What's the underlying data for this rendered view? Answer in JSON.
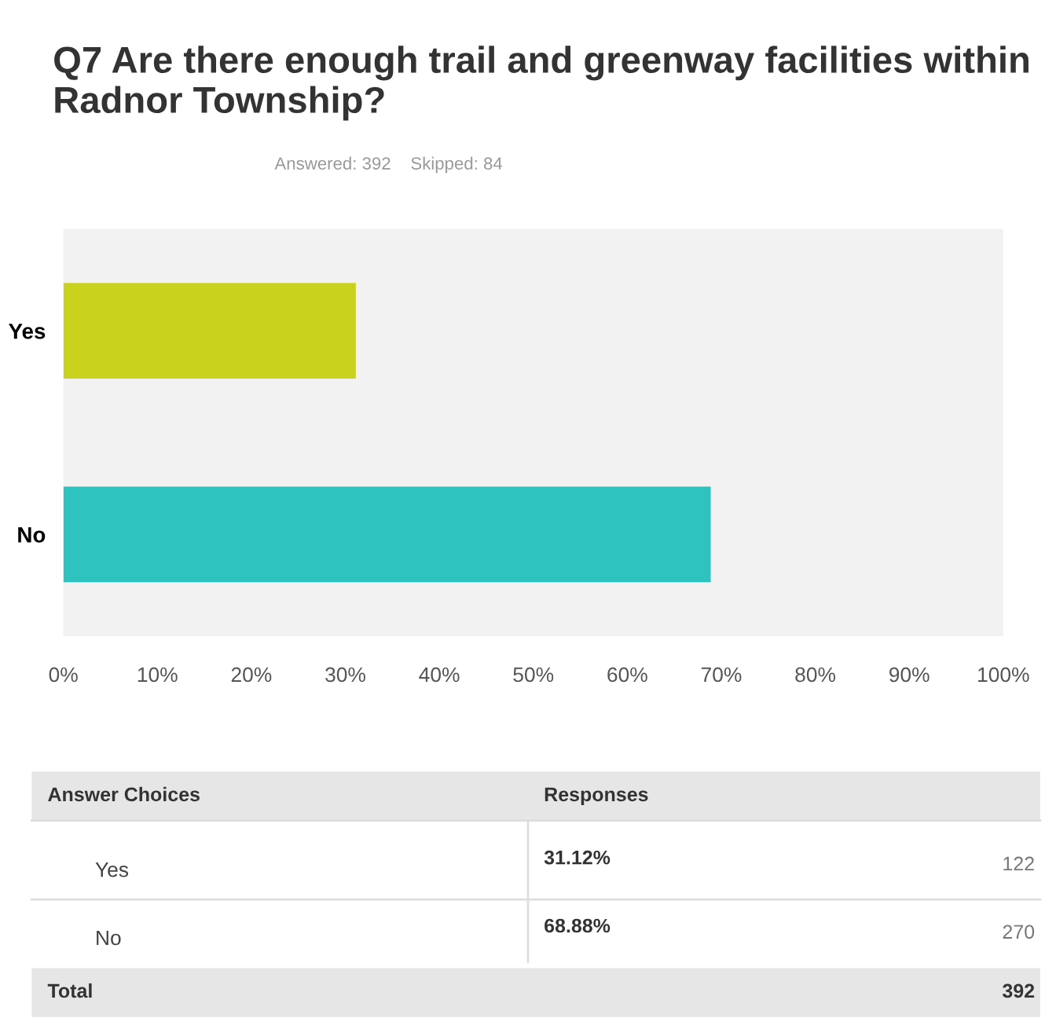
{
  "chart_data": {
    "type": "bar",
    "orientation": "horizontal",
    "title": "Q7 Are there enough trail and greenway facilities within Radnor Township?",
    "subtitle": "Answered: 392    Skipped: 84",
    "categories": [
      "Yes",
      "No"
    ],
    "values": [
      31.12,
      68.88
    ],
    "colors": [
      "#c9d21c",
      "#2fc3bf"
    ],
    "xlim": [
      0,
      100
    ],
    "xticks": [
      {
        "value": 0,
        "label": "0%"
      },
      {
        "value": 10,
        "label": "10%"
      },
      {
        "value": 20,
        "label": "20%"
      },
      {
        "value": 30,
        "label": "30%"
      },
      {
        "value": 40,
        "label": "40%"
      },
      {
        "value": 50,
        "label": "50%"
      },
      {
        "value": 60,
        "label": "60%"
      },
      {
        "value": 70,
        "label": "70%"
      },
      {
        "value": 80,
        "label": "80%"
      },
      {
        "value": 90,
        "label": "90%"
      },
      {
        "value": 100,
        "label": "100%"
      }
    ],
    "grid": false,
    "annotations": [
      "Answer Choices",
      "Responses",
      "31.12%",
      "122",
      "68.88%",
      "270",
      "Total",
      "392"
    ]
  }
}
